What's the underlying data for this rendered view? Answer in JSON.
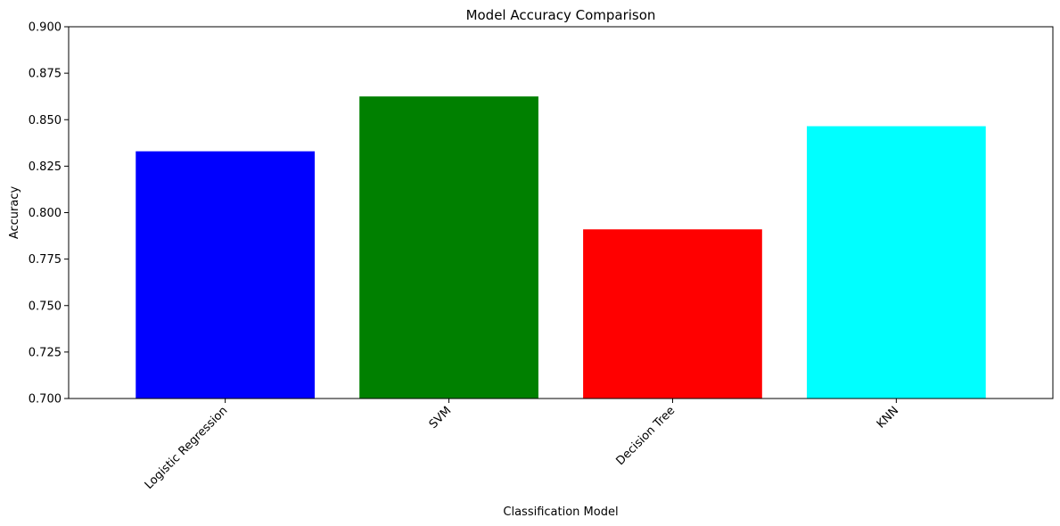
{
  "chart_data": {
    "type": "bar",
    "title": "Model Accuracy Comparison",
    "xlabel": "Classification Model",
    "ylabel": "Accuracy",
    "categories": [
      "Logistic Regression",
      "SVM",
      "Decision Tree",
      "KNN"
    ],
    "values": [
      0.833,
      0.8625,
      0.791,
      0.8465
    ],
    "colors": [
      "#0000ff",
      "#008000",
      "#ff0000",
      "#00ffff"
    ],
    "ylim": [
      0.7,
      0.9
    ],
    "yticks": [
      "0.700",
      "0.725",
      "0.750",
      "0.775",
      "0.800",
      "0.825",
      "0.850",
      "0.875",
      "0.900"
    ],
    "grid": false,
    "legend": "none",
    "xtick_rotation_deg": 45
  }
}
